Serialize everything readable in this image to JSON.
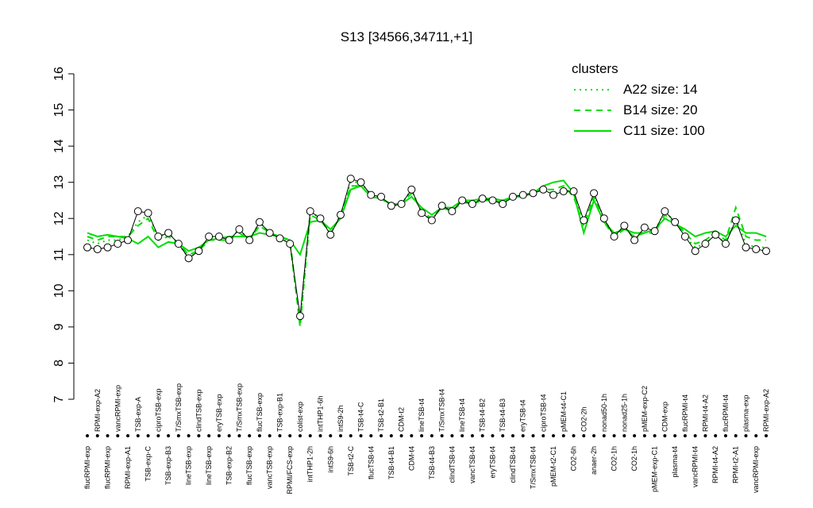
{
  "chart_data": {
    "type": "line",
    "title": "S13 [34566,34711,+1]",
    "categories": [
      "flucRPMI-exp",
      "RPMI-exp-A2",
      "flucRPMI-exp",
      "vancRPMI-exp",
      "RPMI-exp-A1",
      "TSB-exp-A",
      "TSB-exp-C",
      "ciproTSB-exp",
      "TSB-exp-B3",
      "T/SmxTSB-exp",
      "lineTSB-exp",
      "clindTSB-exp",
      "lineTSB-exp",
      "eryTSB-exp",
      "TSB-exp-B2",
      "T/SmxTSB-exp",
      "flucTSB-exp",
      "flucTSB-exp",
      "vancTSB-exp",
      "TSB-exp-B1",
      "RPMI/FCS-exp",
      "colist-exp",
      "intTHP1-2h",
      "intTHP1-6h",
      "intS9-6h",
      "intS9-2h",
      "TSB-t2-C",
      "TSB-t4-C",
      "flucTSB-t4",
      "TSB-t2-B1",
      "TSB-t4-B1",
      "CDM-t2",
      "CDM-t4",
      "lineTSB-t4",
      "TSB-t4-B3",
      "T/SmxTSB-t4",
      "clindTSB-t4",
      "lineTSB-t4",
      "vancTSB-t4",
      "TSB-t4-B2",
      "eryTSB-t4",
      "TSB-t4-B3",
      "clindTSB-t4",
      "eryTSB-t4",
      "T/SmxTSB-t4",
      "ciproTSB-t4",
      "pMEM-t2-C1",
      "pMEM-t4-C1",
      "CO2-6h",
      "CO2-2h",
      "anaer-2h",
      "nonad50-1h",
      "CO2-1h",
      "nonad25-1h",
      "CO2-1h",
      "pMEM-exp-C2",
      "pMEM-exp-C1",
      "CDM-exp",
      "plasma-t4",
      "flucRPMI-t4",
      "vancRPMI-t4",
      "RPMI-t4-A2",
      "RPMI-t4-A2",
      "flucRPMI-t4",
      "RPMI-t2-A1",
      "plasma-exp",
      "vancRPMI-exp",
      "RPMI-exp-A2"
    ],
    "values": [
      11.2,
      11.15,
      11.2,
      11.3,
      11.4,
      12.2,
      12.15,
      11.5,
      11.6,
      11.3,
      10.9,
      11.1,
      11.5,
      11.5,
      11.4,
      11.7,
      11.4,
      11.9,
      11.6,
      11.45,
      11.3,
      9.3,
      12.2,
      12.0,
      11.55,
      12.1,
      13.1,
      13.0,
      12.65,
      12.6,
      12.35,
      12.4,
      12.8,
      12.15,
      11.95,
      12.35,
      12.2,
      12.5,
      12.4,
      12.55,
      12.5,
      12.4,
      12.6,
      12.65,
      12.7,
      12.8,
      12.65,
      12.75,
      12.75,
      11.95,
      12.7,
      12.0,
      11.5,
      11.8,
      11.4,
      11.75,
      11.65,
      12.2,
      11.9,
      11.5,
      11.1,
      11.3,
      11.55,
      11.3,
      11.95,
      11.2,
      11.15,
      11.1
    ],
    "color": "#000000",
    "legend_title": "clusters",
    "legend_color": "#00dd00",
    "legend": "top-right",
    "series": [
      {
        "name": "A22 size: 14",
        "color": "#00dd00",
        "linestyle": "dotted",
        "values": [
          11.4,
          11.3,
          11.4,
          11.4,
          11.5,
          11.9,
          12.1,
          11.5,
          11.6,
          11.3,
          10.9,
          11.1,
          11.5,
          11.5,
          11.4,
          11.7,
          11.4,
          11.9,
          11.6,
          11.5,
          11.3,
          9.1,
          12.2,
          12.0,
          11.6,
          12.1,
          13.0,
          13.0,
          12.65,
          12.6,
          12.35,
          12.4,
          12.8,
          12.15,
          11.95,
          12.35,
          12.2,
          12.5,
          12.4,
          12.55,
          12.5,
          12.4,
          12.6,
          12.65,
          12.7,
          12.8,
          12.7,
          12.75,
          12.7,
          11.9,
          12.65,
          12.0,
          11.5,
          11.8,
          11.4,
          11.7,
          11.65,
          12.2,
          11.9,
          11.5,
          11.2,
          11.3,
          11.55,
          11.3,
          12.0,
          11.3,
          11.2,
          11.2
        ]
      },
      {
        "name": "B14 size: 20",
        "color": "#00dd00",
        "linestyle": "dashed",
        "values": [
          11.5,
          11.4,
          11.5,
          11.5,
          11.5,
          11.8,
          12.0,
          11.4,
          11.5,
          11.3,
          11.0,
          11.1,
          11.4,
          11.4,
          11.4,
          11.6,
          11.4,
          11.8,
          11.6,
          11.5,
          11.4,
          9.0,
          12.1,
          11.95,
          11.6,
          12.05,
          12.9,
          12.9,
          12.6,
          12.55,
          12.35,
          12.4,
          12.7,
          12.2,
          12.0,
          12.3,
          12.2,
          12.45,
          12.4,
          12.5,
          12.5,
          12.45,
          12.6,
          12.6,
          12.7,
          12.8,
          12.8,
          12.9,
          12.6,
          11.8,
          12.6,
          11.9,
          11.5,
          11.7,
          11.5,
          11.6,
          11.6,
          12.1,
          11.9,
          11.6,
          11.3,
          11.4,
          11.6,
          11.4,
          12.3,
          11.5,
          11.4,
          11.4
        ]
      },
      {
        "name": "C11 size: 100",
        "color": "#00dd00",
        "linestyle": "solid",
        "values": [
          11.6,
          11.5,
          11.55,
          11.5,
          11.45,
          11.3,
          11.5,
          11.2,
          11.35,
          11.3,
          11.1,
          11.2,
          11.4,
          11.45,
          11.5,
          11.5,
          11.5,
          11.6,
          11.55,
          11.5,
          11.4,
          11.0,
          11.9,
          11.95,
          11.7,
          12.0,
          12.8,
          12.9,
          12.6,
          12.55,
          12.4,
          12.4,
          12.6,
          12.3,
          12.1,
          12.3,
          12.3,
          12.5,
          12.5,
          12.55,
          12.55,
          12.5,
          12.6,
          12.65,
          12.7,
          12.9,
          13.0,
          13.05,
          12.7,
          11.6,
          12.5,
          11.9,
          11.6,
          11.7,
          11.6,
          11.6,
          11.7,
          12.0,
          11.85,
          11.7,
          11.5,
          11.6,
          11.65,
          11.5,
          11.8,
          11.6,
          11.6,
          11.5
        ]
      }
    ],
    "ylim": [
      7,
      16
    ],
    "yticks": [
      7,
      8,
      9,
      10,
      11,
      12,
      13,
      14,
      15,
      16
    ]
  }
}
